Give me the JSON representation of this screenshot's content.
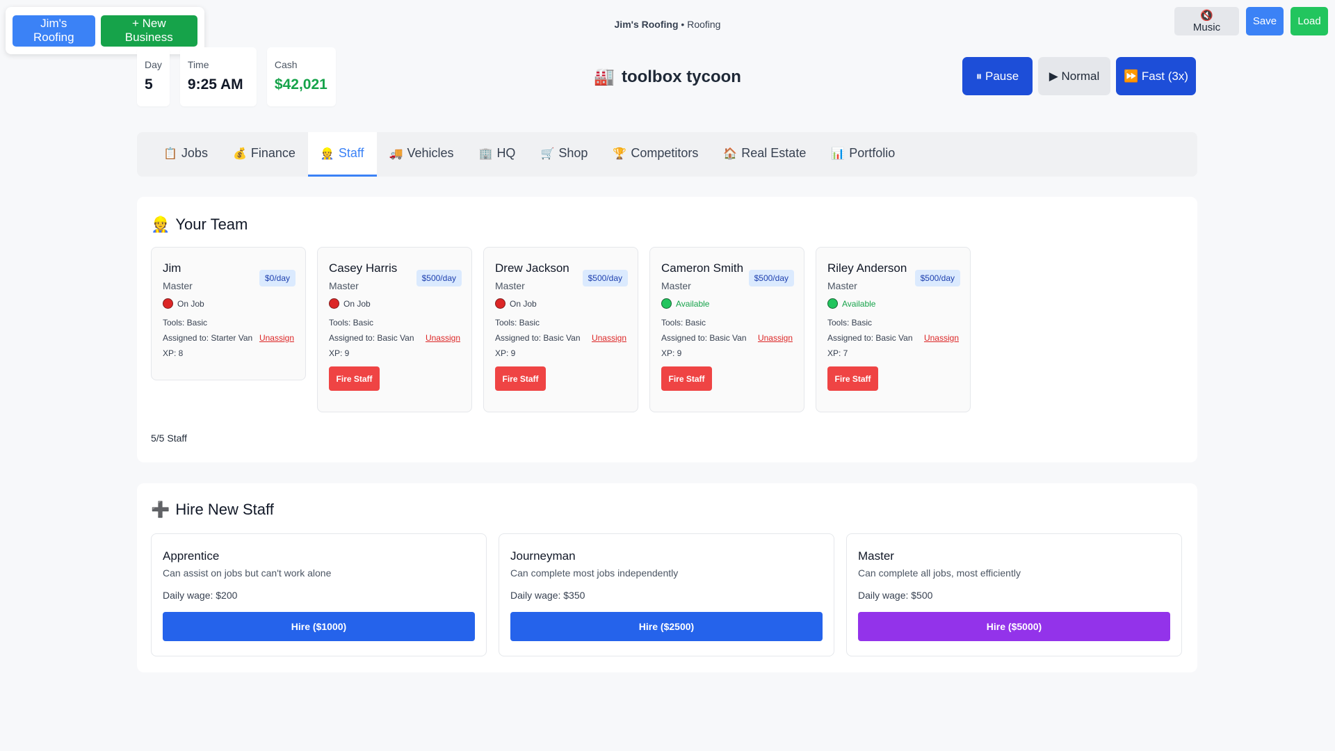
{
  "business_switcher": {
    "current": "Jim's Roofing",
    "new_label": "+ New Business"
  },
  "header": {
    "business_name": "Jim's Roofing",
    "separator": " • ",
    "industry": "Roofing"
  },
  "top_buttons": {
    "music": "🔇 Music",
    "save": "Save",
    "load": "Load"
  },
  "stats": {
    "day_label": "Day",
    "day": "5",
    "time_label": "Time",
    "time": "9:25 AM",
    "cash_label": "Cash",
    "cash": "$42,021"
  },
  "logo": {
    "icon": "🏭",
    "text": "toolbox tycoon"
  },
  "speed": {
    "pause": "⏸ Pause",
    "normal": "▶ Normal",
    "fast": "⏩ Fast (3x)"
  },
  "tabs": [
    {
      "icon": "📋",
      "label": "Jobs"
    },
    {
      "icon": "💰",
      "label": "Finance"
    },
    {
      "icon": "👷",
      "label": "Staff"
    },
    {
      "icon": "🚚",
      "label": "Vehicles"
    },
    {
      "icon": "🏢",
      "label": "HQ"
    },
    {
      "icon": "🛒",
      "label": "Shop"
    },
    {
      "icon": "🏆",
      "label": "Competitors"
    },
    {
      "icon": "🏠",
      "label": "Real Estate"
    },
    {
      "icon": "📊",
      "label": "Portfolio"
    }
  ],
  "team": {
    "icon": "👷",
    "title": "Your Team",
    "staff": [
      {
        "name": "Jim",
        "rank": "Master",
        "wage": "$0/day",
        "status": "On Job",
        "tools": "Tools: Basic",
        "assigned": "Assigned to: Starter Van",
        "unassign": "Unassign",
        "xp": "XP: 8"
      },
      {
        "name": "Casey Harris",
        "rank": "Master",
        "wage": "$500/day",
        "status": "On Job",
        "tools": "Tools: Basic",
        "assigned": "Assigned to: Basic Van",
        "unassign": "Unassign",
        "xp": "XP: 9",
        "fire": "Fire Staff"
      },
      {
        "name": "Drew Jackson",
        "rank": "Master",
        "wage": "$500/day",
        "status": "On Job",
        "tools": "Tools: Basic",
        "assigned": "Assigned to: Basic Van",
        "unassign": "Unassign",
        "xp": "XP: 9",
        "fire": "Fire Staff"
      },
      {
        "name": "Cameron Smith",
        "rank": "Master",
        "wage": "$500/day",
        "status": "Available",
        "tools": "Tools: Basic",
        "assigned": "Assigned to: Basic Van",
        "unassign": "Unassign",
        "xp": "XP: 9",
        "fire": "Fire Staff"
      },
      {
        "name": "Riley Anderson",
        "rank": "Master",
        "wage": "$500/day",
        "status": "Available",
        "tools": "Tools: Basic",
        "assigned": "Assigned to: Basic Van",
        "unassign": "Unassign",
        "xp": "XP: 7",
        "fire": "Fire Staff"
      }
    ],
    "count": "5/5 Staff"
  },
  "hire": {
    "icon": "➕",
    "title": "Hire New Staff",
    "options": [
      {
        "title": "Apprentice",
        "desc": "Can assist on jobs but can't work alone",
        "wage": "Daily wage: $200",
        "button": "Hire ($1000)",
        "color": "#2563eb"
      },
      {
        "title": "Journeyman",
        "desc": "Can complete most jobs independently",
        "wage": "Daily wage: $350",
        "button": "Hire ($2500)",
        "color": "#2563eb"
      },
      {
        "title": "Master",
        "desc": "Can complete all jobs, most efficiently",
        "wage": "Daily wage: $500",
        "button": "Hire ($5000)",
        "color": "#9333ea"
      }
    ]
  }
}
